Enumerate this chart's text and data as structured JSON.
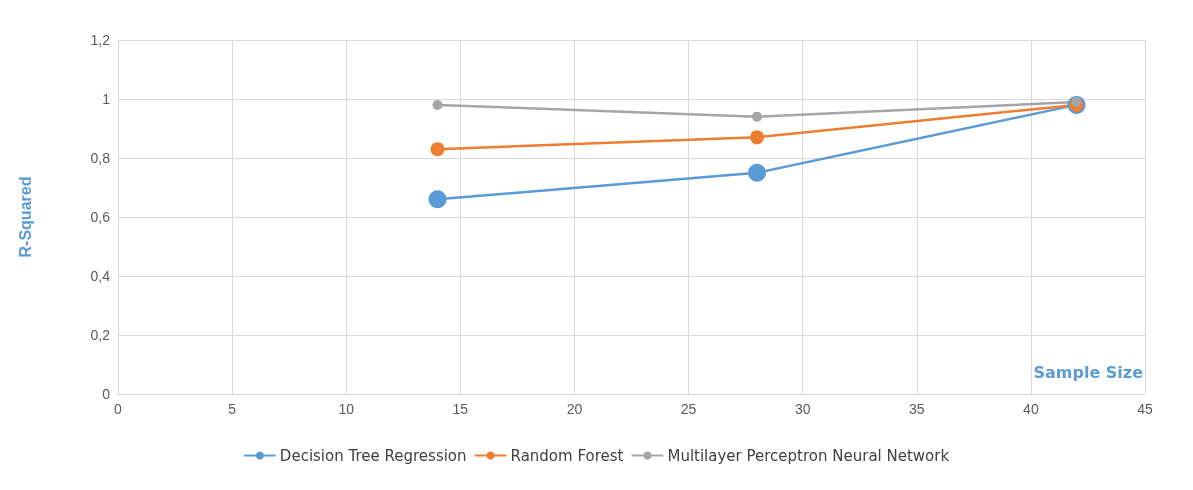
{
  "chart_data": {
    "type": "line",
    "xlabel": "Sample Size",
    "ylabel": "R-Squared",
    "x": [
      14,
      28,
      42
    ],
    "series": [
      {
        "name": "Decision Tree Regression",
        "color": "#5b9bd5",
        "values": [
          0.66,
          0.75,
          0.98
        ]
      },
      {
        "name": "Random Forest",
        "color": "#ed7d31",
        "values": [
          0.83,
          0.87,
          0.98
        ]
      },
      {
        "name": "Multilayer Perceptron Neural Network",
        "color": "#a5a5a5",
        "values": [
          0.98,
          0.94,
          0.99
        ]
      }
    ],
    "xlim": [
      0,
      45
    ],
    "xticks": [
      0,
      5,
      10,
      15,
      20,
      25,
      30,
      35,
      40,
      45
    ],
    "ylim": [
      0,
      1.2
    ],
    "yticks": [
      0,
      {
        "value": 0.2,
        "label": "0,2"
      },
      {
        "value": 0.4,
        "label": "0,4"
      },
      {
        "value": 0.6,
        "label": "0,6"
      },
      {
        "value": 0.8,
        "label": "0,8"
      },
      1,
      {
        "value": 1.2,
        "label": "1,2"
      }
    ],
    "grid": true,
    "legend": "bottom",
    "marker": "circle",
    "line_style": "solid"
  }
}
